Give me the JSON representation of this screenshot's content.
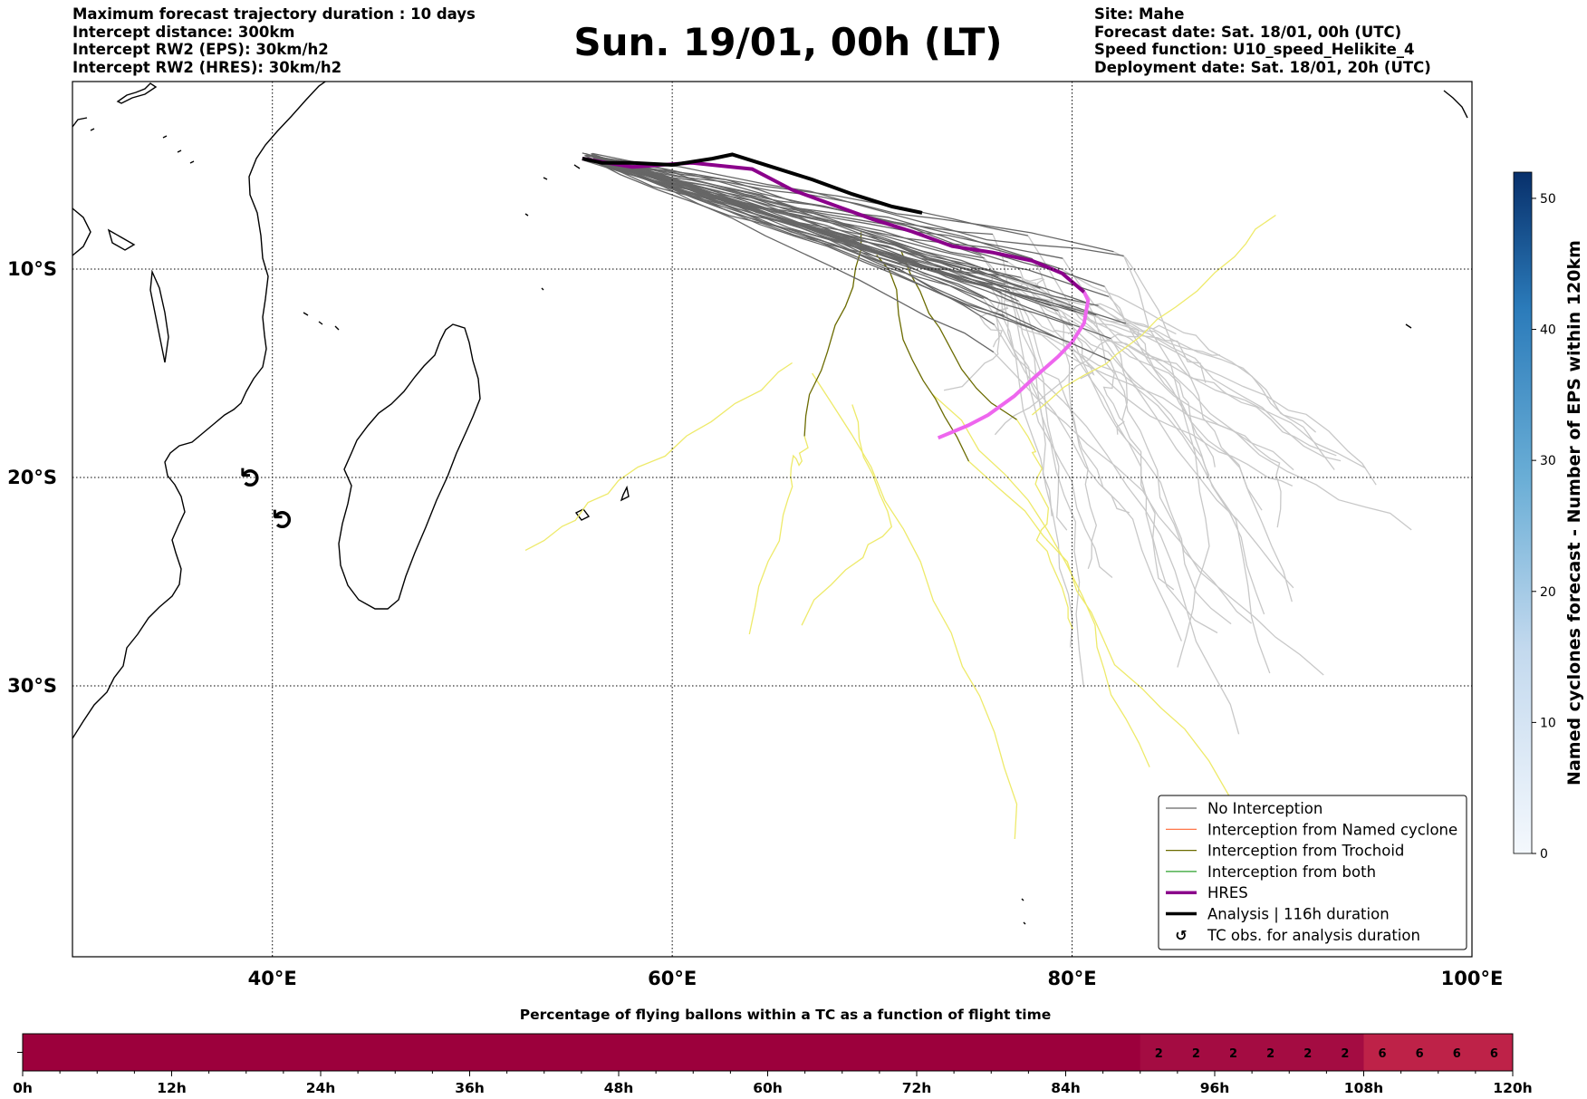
{
  "header_left": [
    "Maximum forecast trajectory duration : 10 days",
    "Intercept distance: 300km",
    "Intercept RW2 (EPS):  30km/h2",
    "Intercept RW2 (HRES): 30km/h2"
  ],
  "title": "Sun. 19/01, 00h (LT)",
  "header_right": [
    "Site: Mahe",
    "Forecast date: Sat. 18/01, 00h (UTC)",
    "Speed function: U10_speed_Helikite_4",
    "Deployment date: Sat. 18/01, 20h (UTC)"
  ],
  "map": {
    "lon_range": [
      30,
      100
    ],
    "lat_range": [
      -43,
      -1
    ],
    "lon_ticks": [
      {
        "value": 40,
        "label": "40°E"
      },
      {
        "value": 60,
        "label": "60°E"
      },
      {
        "value": 80,
        "label": "80°E"
      },
      {
        "value": 100,
        "label": "100°E"
      }
    ],
    "lat_ticks": [
      {
        "value": -10,
        "label": "10°S"
      },
      {
        "value": -20,
        "label": "20°S"
      },
      {
        "value": -30,
        "label": "30°S"
      }
    ],
    "grid": "dotted",
    "colors": {
      "no_interception": "#666666",
      "no_interception_late": "#c8c8c8",
      "named_cyclone": "#ff6633",
      "trochoid": "#6b6b00",
      "trochoid_late": "#eeea6a",
      "both": "#2ca02c",
      "hres": "#8b008b",
      "hres_late": "#ee66ee",
      "analysis": "#000000"
    },
    "hres_track": [
      [
        55.5,
        -4.7
      ],
      [
        58,
        -5.1
      ],
      [
        61,
        -4.9
      ],
      [
        64,
        -5.2
      ],
      [
        66,
        -6.2
      ],
      [
        68,
        -6.9
      ],
      [
        70,
        -7.6
      ],
      [
        72,
        -8.2
      ],
      [
        74,
        -8.9
      ],
      [
        76,
        -9.2
      ],
      [
        78,
        -9.6
      ],
      [
        79.5,
        -10.2
      ],
      [
        80.6,
        -11.1
      ],
      [
        80.8,
        -11.5
      ],
      [
        80.6,
        -12.6
      ],
      [
        80,
        -13.5
      ],
      [
        79.3,
        -14.2
      ],
      [
        78,
        -15.3
      ],
      [
        77.1,
        -16.1
      ],
      [
        75.8,
        -17
      ],
      [
        74.8,
        -17.5
      ],
      [
        73.3,
        -18.1
      ]
    ],
    "hres_late_from_index": 12,
    "analysis_track": [
      [
        55.5,
        -4.7
      ],
      [
        56.5,
        -4.9
      ],
      [
        58,
        -4.9
      ],
      [
        60,
        -5
      ],
      [
        62,
        -4.7
      ],
      [
        63,
        -4.5
      ],
      [
        65,
        -5.1
      ],
      [
        67,
        -5.7
      ],
      [
        69,
        -6.4
      ],
      [
        71,
        -7
      ],
      [
        72.5,
        -7.3
      ]
    ],
    "tc_obs": [
      [
        39.0,
        -20.0
      ],
      [
        40.6,
        -22.0
      ]
    ],
    "colorbar": {
      "label": "Named cyclones forecast - Number of EPS within 120km",
      "min": 0,
      "max": 52,
      "ticks": [
        0,
        10,
        20,
        30,
        40,
        50
      ]
    },
    "legend": [
      {
        "label": "No Interception",
        "style": "line",
        "color": "#666666",
        "width": 1.2
      },
      {
        "label": "Interception from Named cyclone",
        "style": "line",
        "color": "#ff6633",
        "width": 1.2
      },
      {
        "label": "Interception from Trochoid",
        "style": "line",
        "color": "#6b6b00",
        "width": 1.2
      },
      {
        "label": "Interception from both",
        "style": "line",
        "color": "#2ca02c",
        "width": 1.2
      },
      {
        "label": "HRES",
        "style": "line",
        "color": "#8b008b",
        "width": 3.5
      },
      {
        "label": "Analysis | 116h duration",
        "style": "line",
        "color": "#000000",
        "width": 3.5
      },
      {
        "label": "TC obs. for analysis duration",
        "style": "symbol",
        "color": "#000000",
        "symbol": "↺"
      }
    ],
    "legend_position": "lower-right"
  },
  "time_bar": {
    "title": "Percentage of flying ballons within a TC as a function of flight time",
    "tick_labels": [
      "0h",
      "12h",
      "24h",
      "36h",
      "48h",
      "60h",
      "72h",
      "84h",
      "96h",
      "108h",
      "120h"
    ],
    "x_range_hours": [
      0,
      120
    ],
    "segments": [
      {
        "start": 0,
        "end": 90,
        "value": 0
      },
      {
        "start": 90,
        "end": 93,
        "value": 2
      },
      {
        "start": 93,
        "end": 96,
        "value": 2
      },
      {
        "start": 96,
        "end": 99,
        "value": 2
      },
      {
        "start": 99,
        "end": 102,
        "value": 2
      },
      {
        "start": 102,
        "end": 105,
        "value": 2
      },
      {
        "start": 105,
        "end": 108,
        "value": 2
      },
      {
        "start": 108,
        "end": 111,
        "value": 6
      },
      {
        "start": 111,
        "end": 114,
        "value": 6
      },
      {
        "start": 114,
        "end": 117,
        "value": 6
      },
      {
        "start": 117,
        "end": 120,
        "value": 6
      }
    ],
    "segment_colors": {
      "0": "#9c003c",
      "2": "#a40c42",
      "6": "#be2248"
    }
  }
}
